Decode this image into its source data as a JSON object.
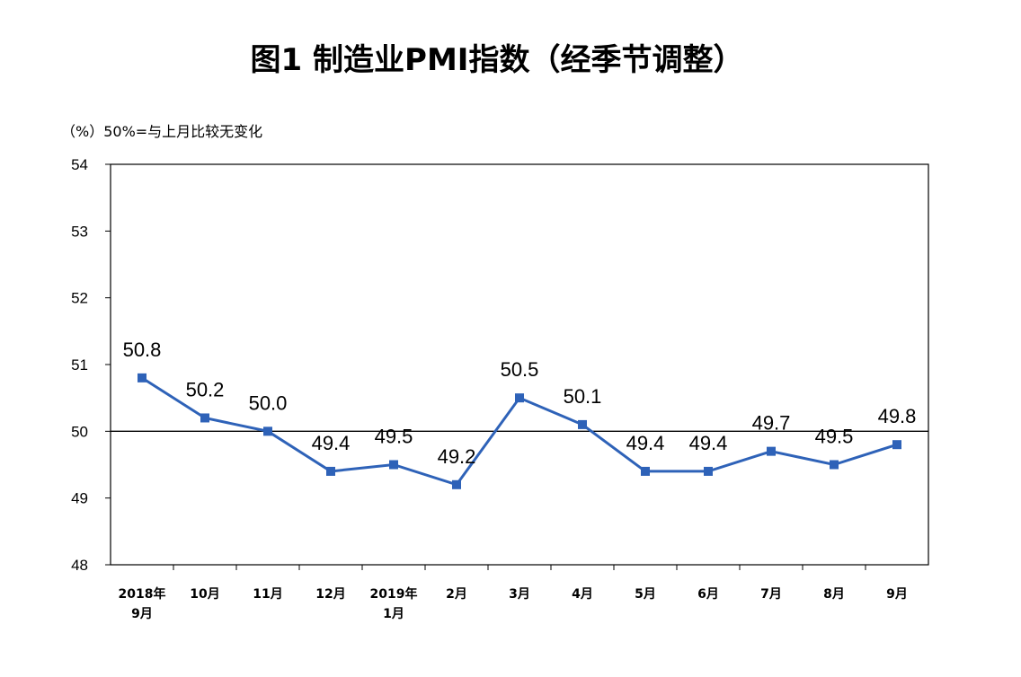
{
  "chart_data": {
    "type": "line",
    "title": "图1 制造业PMI指数（经季节调整）",
    "note": "（%）50%=与上月比较无变化",
    "xlabel": "",
    "ylabel": "",
    "ylim": [
      48,
      54
    ],
    "yticks": [
      "54",
      "53",
      "52",
      "51",
      "50",
      "49",
      "48"
    ],
    "reference_line": 50,
    "grid": false,
    "categories": [
      [
        "2018年",
        "9月"
      ],
      [
        "10月"
      ],
      [
        "11月"
      ],
      [
        "12月"
      ],
      [
        "2019年",
        "1月"
      ],
      [
        "2月"
      ],
      [
        "3月"
      ],
      [
        "4月"
      ],
      [
        "5月"
      ],
      [
        "6月"
      ],
      [
        "7月"
      ],
      [
        "8月"
      ],
      [
        "9月"
      ]
    ],
    "series": [
      {
        "color": "#2e62b8",
        "values": [
          50.8,
          50.2,
          50.0,
          49.4,
          49.5,
          49.2,
          50.5,
          50.1,
          49.4,
          49.4,
          49.7,
          49.5,
          49.8
        ],
        "labels": [
          "50.8",
          "50.2",
          "50.0",
          "49.4",
          "49.5",
          "49.2",
          "50.5",
          "50.1",
          "49.4",
          "49.4",
          "49.7",
          "49.5",
          "49.8"
        ]
      }
    ]
  }
}
